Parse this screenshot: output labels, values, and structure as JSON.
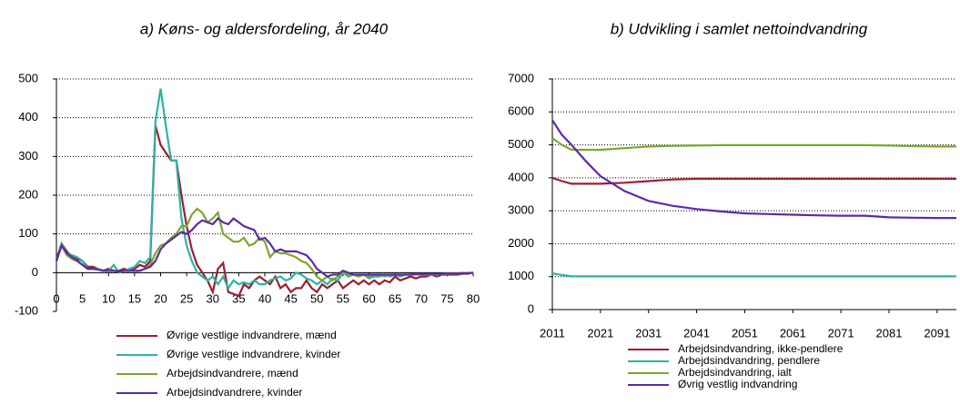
{
  "chart_data": [
    {
      "type": "line",
      "title": "a) Køns- og aldersfordeling, år 2040",
      "x": [
        0,
        1,
        2,
        3,
        4,
        5,
        6,
        7,
        8,
        9,
        10,
        11,
        12,
        13,
        14,
        15,
        16,
        17,
        18,
        19,
        20,
        21,
        22,
        23,
        24,
        25,
        26,
        27,
        28,
        29,
        30,
        31,
        32,
        33,
        34,
        35,
        36,
        37,
        38,
        39,
        40,
        41,
        42,
        43,
        44,
        45,
        46,
        47,
        48,
        49,
        50,
        51,
        52,
        53,
        54,
        55,
        56,
        57,
        58,
        59,
        60,
        61,
        62,
        63,
        64,
        65,
        66,
        67,
        68,
        69,
        70,
        71,
        72,
        73,
        74,
        75,
        76,
        77,
        78,
        79,
        80
      ],
      "xlim": [
        0,
        80
      ],
      "xticks": [
        0,
        5,
        10,
        15,
        20,
        25,
        30,
        35,
        40,
        45,
        50,
        55,
        60,
        65,
        70,
        75,
        80
      ],
      "ylim": [
        -100,
        500
      ],
      "yticks": [
        -100,
        0,
        100,
        200,
        300,
        400,
        500
      ],
      "grid": true,
      "legend": "bottom",
      "series": [
        {
          "name": "Øvrige vestlige indvandrere, mænd",
          "color": "#9b1f2e",
          "values": [
            35,
            75,
            55,
            40,
            35,
            30,
            15,
            15,
            10,
            5,
            10,
            5,
            5,
            10,
            5,
            10,
            20,
            15,
            30,
            380,
            330,
            310,
            290,
            290,
            200,
            120,
            60,
            20,
            0,
            -20,
            -50,
            10,
            25,
            -50,
            -55,
            -60,
            -30,
            -40,
            -20,
            -10,
            -20,
            -30,
            -10,
            -40,
            -30,
            -50,
            -40,
            -40,
            -20,
            -40,
            -50,
            -30,
            -40,
            -30,
            -20,
            -40,
            -30,
            -20,
            -30,
            -20,
            -30,
            -20,
            -30,
            -20,
            -25,
            -10,
            -20,
            -15,
            -10,
            -15,
            -10,
            -10,
            -5,
            -10,
            -5,
            -5,
            -5,
            -5,
            -3,
            -3,
            0
          ]
        },
        {
          "name": "Øvrige vestlige indvandrere, kvinder",
          "color": "#2db3a3",
          "values": [
            30,
            75,
            50,
            45,
            40,
            30,
            10,
            10,
            10,
            5,
            5,
            20,
            0,
            5,
            10,
            15,
            30,
            25,
            40,
            390,
            475,
            380,
            290,
            290,
            140,
            70,
            30,
            0,
            -10,
            -20,
            -10,
            -30,
            -10,
            -40,
            -20,
            -30,
            -25,
            -30,
            -20,
            -30,
            -30,
            -20,
            -15,
            -10,
            -20,
            -15,
            0,
            -5,
            -15,
            -20,
            -30,
            -20,
            -30,
            -15,
            -20,
            0,
            -10,
            -5,
            -10,
            -5,
            -15,
            -10,
            -10,
            -5,
            -10,
            -5,
            -10,
            -5,
            -5,
            -5,
            -5,
            -5,
            -5,
            -3,
            -3,
            -3,
            -2,
            -2,
            -2,
            -2,
            -1
          ]
        },
        {
          "name": "Arbejdsindvandrere, mænd",
          "color": "#7aa82a",
          "values": [
            30,
            70,
            45,
            35,
            30,
            20,
            10,
            10,
            8,
            5,
            5,
            5,
            3,
            5,
            5,
            5,
            5,
            10,
            20,
            50,
            70,
            75,
            90,
            100,
            120,
            120,
            150,
            165,
            155,
            130,
            140,
            155,
            100,
            90,
            80,
            80,
            90,
            70,
            75,
            90,
            80,
            40,
            55,
            50,
            50,
            45,
            40,
            30,
            25,
            10,
            -10,
            -20,
            -10,
            -20,
            -10,
            0,
            -5,
            -5,
            -10,
            -5,
            -10,
            -5,
            -5,
            -10,
            -5,
            -5,
            -5,
            -5,
            -5,
            -5,
            -5,
            -3,
            -3,
            -3,
            -3,
            -2,
            -2,
            -2,
            -1,
            -1,
            0
          ]
        },
        {
          "name": "Arbejdsindvandrere, kvinder",
          "color": "#5b2aa8",
          "values": [
            30,
            70,
            50,
            40,
            30,
            20,
            10,
            10,
            8,
            5,
            5,
            5,
            3,
            5,
            5,
            5,
            5,
            10,
            15,
            30,
            60,
            75,
            85,
            95,
            105,
            100,
            110,
            125,
            135,
            130,
            125,
            140,
            130,
            125,
            140,
            130,
            120,
            115,
            110,
            85,
            90,
            75,
            55,
            60,
            55,
            55,
            55,
            50,
            45,
            30,
            10,
            0,
            -10,
            -5,
            -5,
            5,
            0,
            -5,
            -5,
            -5,
            -5,
            -5,
            -5,
            -5,
            -5,
            -5,
            -5,
            -5,
            -5,
            -3,
            -3,
            -3,
            -3,
            -3,
            -3,
            -2,
            -2,
            -2,
            -1,
            -1,
            0
          ]
        }
      ]
    },
    {
      "type": "line",
      "title": "b) Udvikling i samlet nettoindvandring",
      "x": [
        2011,
        2013,
        2015,
        2018,
        2021,
        2026,
        2031,
        2036,
        2041,
        2046,
        2051,
        2056,
        2061,
        2066,
        2071,
        2076,
        2081,
        2086,
        2091,
        2095
      ],
      "xlim": [
        2011,
        2095
      ],
      "xticks": [
        2011,
        2021,
        2031,
        2041,
        2051,
        2061,
        2071,
        2081,
        2091
      ],
      "ylim": [
        0,
        7000
      ],
      "yticks": [
        0,
        1000,
        2000,
        3000,
        4000,
        5000,
        6000,
        7000
      ],
      "grid": true,
      "legend": "bottom",
      "series": [
        {
          "name": "Arbejdsindvandring, ikke-pendlere",
          "color": "#9b1f2e",
          "values": [
            4000,
            3900,
            3820,
            3820,
            3820,
            3850,
            3900,
            3950,
            3970,
            3970,
            3970,
            3970,
            3970,
            3970,
            3970,
            3970,
            3970,
            3970,
            3970,
            3970
          ]
        },
        {
          "name": "Arbejdsindvandring, pendlere",
          "color": "#2db3a3",
          "values": [
            1100,
            1050,
            1010,
            1010,
            1010,
            1010,
            1010,
            1010,
            1010,
            1010,
            1010,
            1010,
            1010,
            1010,
            1010,
            1010,
            1010,
            1010,
            1010,
            1010
          ]
        },
        {
          "name": "Arbejdsindvandring, ialt",
          "color": "#7aa82a",
          "values": [
            5200,
            5000,
            4850,
            4850,
            4850,
            4900,
            4950,
            4970,
            4980,
            4990,
            4990,
            4990,
            4990,
            4990,
            4990,
            4990,
            4980,
            4960,
            4950,
            4950
          ]
        },
        {
          "name": "Øvrig vestlig indvandring",
          "color": "#5b2aa8",
          "values": [
            5750,
            5300,
            5000,
            4500,
            4050,
            3600,
            3300,
            3150,
            3050,
            2980,
            2920,
            2900,
            2880,
            2860,
            2850,
            2850,
            2800,
            2790,
            2780,
            2780
          ]
        }
      ]
    }
  ]
}
